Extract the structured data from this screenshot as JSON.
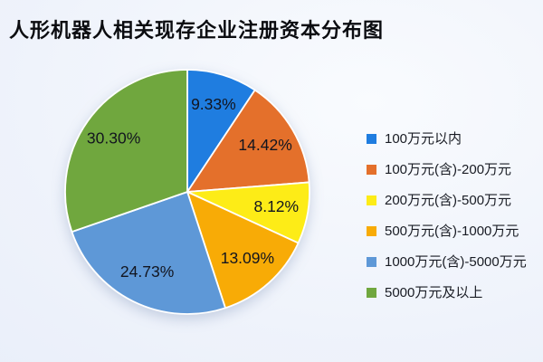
{
  "title": "人形机器人相关现存企业注册资本分布图",
  "chart_data": {
    "type": "pie",
    "title": "人形机器人相关现存企业注册资本分布图",
    "start_angle_deg_from_top_clockwise": 0,
    "legend_position": "right",
    "labels_inside_slices": true,
    "label_format": "percent",
    "series": [
      {
        "label": "100万元以内",
        "value": 9.33,
        "display": "9.33%",
        "color": "#1f7de0"
      },
      {
        "label": "100万元(含)-200万元",
        "value": 14.42,
        "display": "14.42%",
        "color": "#e4702b"
      },
      {
        "label": "200万元(含)-500万元",
        "value": 8.12,
        "display": "8.12%",
        "color": "#fdec17"
      },
      {
        "label": "500万元(含)-1000万元",
        "value": 13.09,
        "display": "13.09%",
        "color": "#f8ab06"
      },
      {
        "label": "1000万元(含)-5000万元",
        "value": 24.73,
        "display": "24.73%",
        "color": "#5e98d7"
      },
      {
        "label": "5000万元及以上",
        "value": 30.3,
        "display": "30.30%",
        "color": "#70a73e"
      }
    ]
  }
}
